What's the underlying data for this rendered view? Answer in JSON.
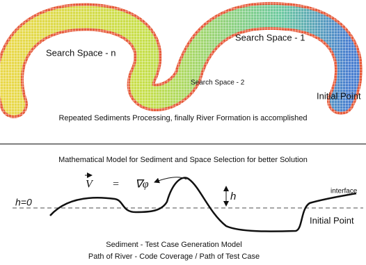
{
  "top_panel": {
    "labels": {
      "search_space_1": "Search Space  - 1",
      "search_space_n": "Search Space  - n",
      "search_space_2": "Search Space  - 2",
      "initial_point": "Initial Point"
    },
    "caption": "Repeated Sediments Processing, finally River Formation is accomplished"
  },
  "bottom_panel": {
    "title": "Mathematical Model for Sediment and Space Selection for better Solution",
    "formula": {
      "lhs": "V",
      "equals": "=",
      "rhs": "∇φ"
    },
    "h_zero": "h=0",
    "h": "h",
    "interface": "interface",
    "initial_point": "Initial Point",
    "caption_line_1": "Sediment - Test Case Generation Model",
    "caption_line_2": "Path of River - Code Coverage / Path of Test Case"
  }
}
